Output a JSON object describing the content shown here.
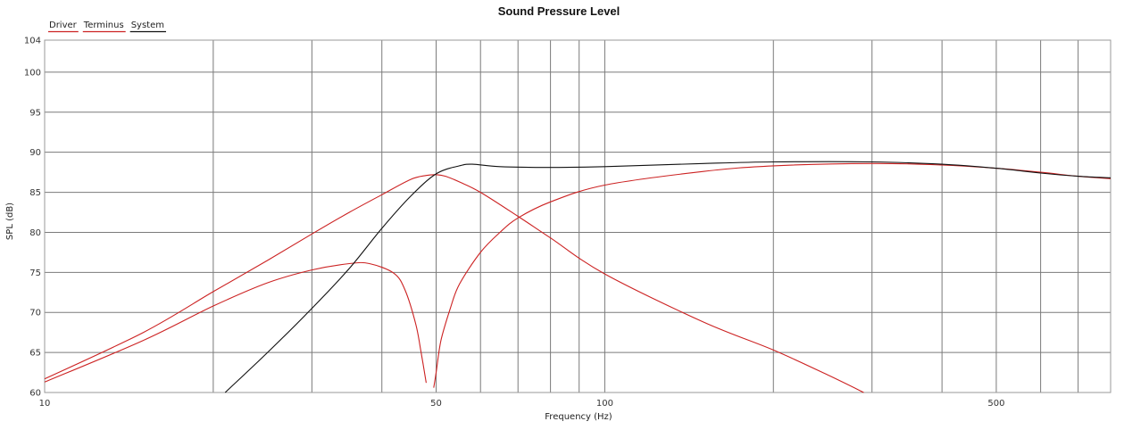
{
  "chart_data": {
    "type": "line",
    "title": "Sound Pressure Level",
    "xlabel": "Frequency (Hz)",
    "ylabel": "SPL (dB)",
    "xscale": "log",
    "xlim": [
      10,
      800
    ],
    "ylim": [
      60,
      104
    ],
    "x_tick_labels": [
      {
        "value": 10,
        "label": "10"
      },
      {
        "value": 50,
        "label": "50"
      },
      {
        "value": 100,
        "label": "100"
      },
      {
        "value": 500,
        "label": "500"
      }
    ],
    "y_tick_labels": [
      {
        "value": 60,
        "label": "60"
      },
      {
        "value": 65,
        "label": "65"
      },
      {
        "value": 70,
        "label": "70"
      },
      {
        "value": 75,
        "label": "75"
      },
      {
        "value": 80,
        "label": "80"
      },
      {
        "value": 85,
        "label": "85"
      },
      {
        "value": 90,
        "label": "90"
      },
      {
        "value": 95,
        "label": "95"
      },
      {
        "value": 100,
        "label": "100"
      },
      {
        "value": 104,
        "label": "104"
      }
    ],
    "grid": true,
    "legend_position": "top-left",
    "series": [
      {
        "name": "Driver",
        "color": "#cc2222",
        "points": [
          [
            10,
            61.3
          ],
          [
            15,
            66.5
          ],
          [
            20,
            70.8
          ],
          [
            25,
            73.7
          ],
          [
            30,
            75.3
          ],
          [
            35,
            76.1
          ],
          [
            38,
            76.1
          ],
          [
            42,
            74.9
          ],
          [
            44,
            72.8
          ],
          [
            46,
            68.5
          ],
          [
            47,
            65
          ],
          [
            48,
            61.2
          ]
        ]
      },
      {
        "name": "Driver",
        "color": "#cc2222",
        "points": [
          [
            49.5,
            60.6
          ],
          [
            50,
            62.5
          ],
          [
            51,
            66.5
          ],
          [
            53,
            70.5
          ],
          [
            55,
            73.5
          ],
          [
            60,
            77.5
          ],
          [
            65,
            80
          ],
          [
            70,
            81.8
          ],
          [
            80,
            83.8
          ],
          [
            100,
            85.9
          ],
          [
            150,
            87.6
          ],
          [
            200,
            88.3
          ],
          [
            300,
            88.6
          ],
          [
            400,
            88.4
          ],
          [
            500,
            88
          ],
          [
            600,
            87.5
          ],
          [
            700,
            87
          ],
          [
            800,
            86.7
          ]
        ]
      },
      {
        "name": "Terminus",
        "color": "#cc2222",
        "points": [
          [
            10,
            61.7
          ],
          [
            15,
            67.5
          ],
          [
            20,
            72.6
          ],
          [
            25,
            76.5
          ],
          [
            30,
            79.8
          ],
          [
            35,
            82.5
          ],
          [
            40,
            84.7
          ],
          [
            45,
            86.6
          ],
          [
            48,
            87.1
          ],
          [
            50,
            87.2
          ],
          [
            52,
            87
          ],
          [
            55,
            86.3
          ],
          [
            60,
            85
          ],
          [
            70,
            82
          ],
          [
            80,
            79.3
          ],
          [
            100,
            74.8
          ],
          [
            150,
            68.8
          ],
          [
            200,
            65.3
          ],
          [
            250,
            62.2
          ],
          [
            290,
            60
          ]
        ]
      },
      {
        "name": "System",
        "color": "#111111",
        "points": [
          [
            21,
            60
          ],
          [
            25,
            65
          ],
          [
            30,
            70.5
          ],
          [
            35,
            75.5
          ],
          [
            40,
            80.5
          ],
          [
            45,
            84.5
          ],
          [
            50,
            87.3
          ],
          [
            55,
            88.3
          ],
          [
            58,
            88.5
          ],
          [
            65,
            88.2
          ],
          [
            80,
            88.1
          ],
          [
            100,
            88.2
          ],
          [
            150,
            88.6
          ],
          [
            200,
            88.8
          ],
          [
            300,
            88.8
          ],
          [
            400,
            88.5
          ],
          [
            500,
            88
          ],
          [
            600,
            87.4
          ],
          [
            700,
            87
          ],
          [
            800,
            86.8
          ]
        ]
      }
    ],
    "legend": [
      {
        "name": "Driver",
        "color": "#cc2222"
      },
      {
        "name": "Terminus",
        "color": "#cc2222"
      },
      {
        "name": "System",
        "color": "#111111"
      }
    ]
  }
}
